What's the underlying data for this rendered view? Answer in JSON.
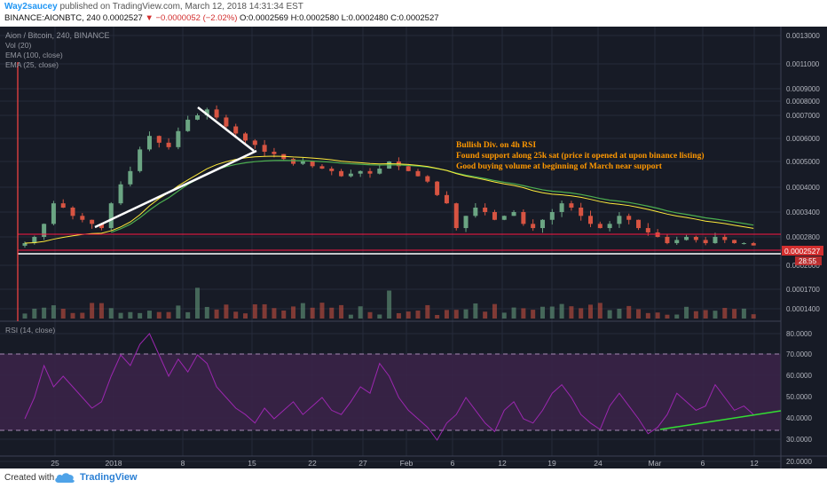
{
  "header": {
    "author": "Way2saucey",
    "published": "published on TradingView.com, March 12, 2018 14:31:34 EST",
    "symbol": "BINANCE:AIONBTC, 240",
    "last": "0.0002527",
    "change": "−0.0000052 (−2.02%)",
    "ohlc": "O:0.0002569 H:0.0002580 L:0.0002480 C:0.0002527"
  },
  "legend": {
    "title": "Aion / Bitcoin, 240, BINANCE",
    "vol": "Vol (20)",
    "ema100": "EMA (100, close)",
    "ema25": "EMA (25, close)",
    "rsi": "RSI (14, close)"
  },
  "annotation": {
    "line1": "Bullish Div. on 4h RSI",
    "line2": "Found support along 25k sat (price it opened at upon binance listing)",
    "line3": "Good buying volume at beginning of March near support"
  },
  "footer": {
    "created": "Created with",
    "brand": "TradingView"
  },
  "colors": {
    "background": "#171b26",
    "candle_up": "#6ba583",
    "candle_down": "#d75442",
    "ema100": "#4caf50",
    "ema25": "#ffeb3b",
    "rsi_line": "#9c27b0",
    "rsi_band": "#3a2348",
    "annotation": "#ff9800",
    "support_line": "#ff1744"
  },
  "chart_data": {
    "type": "candlestick",
    "x_ticks": [
      "25",
      "2018",
      "8",
      "15",
      "22",
      "27",
      "Feb",
      "6",
      "12",
      "19",
      "24",
      "Mar",
      "6",
      "12"
    ],
    "price_axis_ticks": [
      "0.0013000",
      "0.0011000",
      "0.0009000",
      "0.0008000",
      "0.0007000",
      "0.0006000",
      "0.0005000",
      "0.0004000",
      "0.0003400",
      "0.0002800",
      "0.0002000",
      "0.0001700",
      "0.0001400"
    ],
    "last_price_label": "0.0002527",
    "countdown_label": "28:55",
    "rsi_axis_ticks": [
      "80.0000",
      "70.0000",
      "60.0000",
      "50.0000",
      "40.0000",
      "30.0000",
      "20.0000"
    ],
    "rsi_bands": [
      30,
      70
    ],
    "close_series": [
      0.00026,
      0.00028,
      0.00031,
      0.00036,
      0.00035,
      0.00033,
      0.00032,
      0.00031,
      0.0003,
      0.00036,
      0.00041,
      0.00046,
      0.00055,
      0.00061,
      0.00058,
      0.00056,
      0.00063,
      0.00068,
      0.0007,
      0.00074,
      0.00069,
      0.00065,
      0.00062,
      0.00059,
      0.00057,
      0.00054,
      0.00053,
      0.00051,
      0.00049,
      0.0005,
      0.00048,
      0.00047,
      0.00046,
      0.00044,
      0.00045,
      0.00046,
      0.00045,
      0.00047,
      0.0005,
      0.00048,
      0.00046,
      0.00044,
      0.00042,
      0.00038,
      0.00036,
      0.0003,
      0.00033,
      0.00035,
      0.00034,
      0.00032,
      0.00033,
      0.00034,
      0.00031,
      0.0003,
      0.00032,
      0.00034,
      0.00036,
      0.00035,
      0.00033,
      0.00031,
      0.0003,
      0.00031,
      0.00033,
      0.00032,
      0.0003,
      0.00029,
      0.00028,
      0.00026,
      0.00027,
      0.00028,
      0.00027,
      0.00026,
      0.00028,
      0.00027,
      0.00026,
      0.00026,
      0.000253
    ],
    "rsi_series": [
      40,
      50,
      65,
      55,
      60,
      55,
      50,
      45,
      48,
      60,
      70,
      65,
      75,
      80,
      70,
      60,
      68,
      62,
      70,
      66,
      55,
      50,
      45,
      42,
      38,
      45,
      40,
      44,
      48,
      42,
      46,
      50,
      44,
      42,
      48,
      55,
      52,
      66,
      60,
      50,
      44,
      40,
      36,
      30,
      38,
      42,
      50,
      44,
      38,
      34,
      44,
      48,
      40,
      38,
      44,
      52,
      56,
      50,
      42,
      38,
      35,
      46,
      52,
      46,
      40,
      33,
      36,
      42,
      52,
      48,
      44,
      46,
      56,
      50,
      44,
      46,
      42
    ],
    "annotation_lines": [
      {
        "name": "falling-wedge-upper",
        "from": [
          0.0008,
          "8"
        ],
        "to": [
          0.00057,
          "15"
        ]
      },
      {
        "name": "rising-trend",
        "from": [
          0.00031,
          "25"
        ],
        "to": [
          0.00057,
          "15"
        ]
      },
      {
        "name": "support",
        "level": 0.00025
      },
      {
        "name": "resistance",
        "level": 0.00029
      },
      {
        "name": "rsi-divergence",
        "from": [
          31,
          "Mar"
        ],
        "to": [
          40,
          "12"
        ]
      }
    ]
  }
}
